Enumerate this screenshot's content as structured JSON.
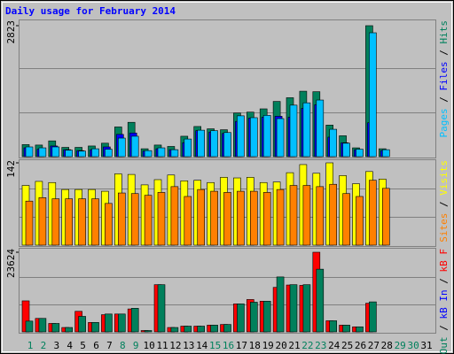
{
  "chart_data": [
    {
      "type": "bar",
      "title": "Daily usage for February 2014",
      "legend_separator": " / ",
      "ylim": [
        0,
        2823
      ],
      "yticks": [
        2823
      ],
      "series": [
        {
          "name": "Hits",
          "color": "#00805c",
          "values": [
            260,
            250,
            340,
            200,
            200,
            230,
            290,
            640,
            740,
            170,
            250,
            220,
            440,
            650,
            600,
            580,
            940,
            960,
            1030,
            1190,
            1270,
            1410,
            1400,
            680,
            450,
            190,
            2823,
            170,
            null,
            null,
            null
          ]
        },
        {
          "name": "Files",
          "color": "#0000ff",
          "values": [
            190,
            160,
            230,
            150,
            130,
            150,
            210,
            480,
            510,
            120,
            170,
            150,
            300,
            560,
            530,
            500,
            760,
            830,
            850,
            870,
            850,
            1040,
            1120,
            420,
            300,
            150,
            730,
            130,
            null,
            null,
            null
          ]
        },
        {
          "name": "Pages",
          "color": "#00c0ff",
          "values": [
            210,
            190,
            210,
            140,
            120,
            170,
            160,
            400,
            440,
            130,
            190,
            150,
            380,
            570,
            560,
            520,
            880,
            840,
            890,
            820,
            1110,
            1160,
            1220,
            590,
            290,
            160,
            2670,
            150,
            null,
            null,
            null
          ]
        }
      ]
    },
    {
      "type": "bar",
      "ylim": [
        0,
        142
      ],
      "yticks": [
        142
      ],
      "series": [
        {
          "name": "Visits",
          "color": "#ffff00",
          "values": [
            103,
            110,
            108,
            96,
            96,
            96,
            93,
            123,
            122,
            104,
            113,
            121,
            111,
            112,
            108,
            117,
            116,
            117,
            108,
            109,
            125,
            139,
            124,
            142,
            120,
            106,
            127,
            114,
            null,
            null,
            null
          ]
        },
        {
          "name": "Sites",
          "color": "#ff8000",
          "values": [
            76,
            82,
            80,
            80,
            80,
            80,
            72,
            90,
            89,
            86,
            91,
            101,
            84,
            96,
            93,
            91,
            93,
            93,
            91,
            96,
            103,
            103,
            101,
            105,
            89,
            84,
            112,
            98,
            null,
            null,
            null
          ]
        }
      ]
    },
    {
      "type": "bar",
      "ylim": [
        0,
        23624
      ],
      "yticks": [
        23624
      ],
      "categories": [
        "1",
        "2",
        "3",
        "4",
        "5",
        "6",
        "7",
        "8",
        "9",
        "10",
        "11",
        "12",
        "13",
        "14",
        "15",
        "16",
        "17",
        "18",
        "19",
        "20",
        "21",
        "22",
        "23",
        "24",
        "25",
        "26",
        "27",
        "28",
        "29",
        "30",
        "31"
      ],
      "category_colors": [
        "#00805c",
        "#00805c",
        "#000000",
        "#000000",
        "#000000",
        "#000000",
        "#000000",
        "#00805c",
        "#00805c",
        "#000000",
        "#000000",
        "#000000",
        "#000000",
        "#000000",
        "#00805c",
        "#00805c",
        "#000000",
        "#000000",
        "#000000",
        "#000000",
        "#000000",
        "#00805c",
        "#00805c",
        "#000000",
        "#000000",
        "#000000",
        "#000000",
        "#000000",
        "#00805c",
        "#00805c",
        "#000000"
      ],
      "series": [
        {
          "name": "kB F",
          "color": "#ff0000",
          "values": [
            9200,
            4000,
            2500,
            1300,
            6100,
            2800,
            5100,
            5300,
            6800,
            400,
            14000,
            1300,
            1700,
            1700,
            2000,
            2200,
            8300,
            9600,
            9100,
            13200,
            13900,
            13800,
            23624,
            3300,
            2000,
            1500,
            8500,
            0,
            null,
            null,
            null
          ]
        },
        {
          "name": "kB In",
          "color": "#0000ff",
          "values": [
            0,
            0,
            0,
            0,
            0,
            0,
            0,
            0,
            0,
            0,
            0,
            0,
            0,
            0,
            0,
            0,
            0,
            0,
            0,
            0,
            0,
            0,
            0,
            0,
            0,
            0,
            0,
            0,
            null,
            null,
            null
          ]
        },
        {
          "name": "kB Out",
          "color": "#00805c",
          "values": [
            3200,
            4000,
            2500,
            1300,
            4600,
            2800,
            5300,
            5300,
            7000,
            400,
            14000,
            1300,
            1700,
            1700,
            2000,
            2200,
            8300,
            8800,
            9100,
            16300,
            14000,
            14000,
            18600,
            3300,
            2000,
            1500,
            8900,
            0,
            null,
            null,
            null
          ]
        }
      ]
    }
  ]
}
